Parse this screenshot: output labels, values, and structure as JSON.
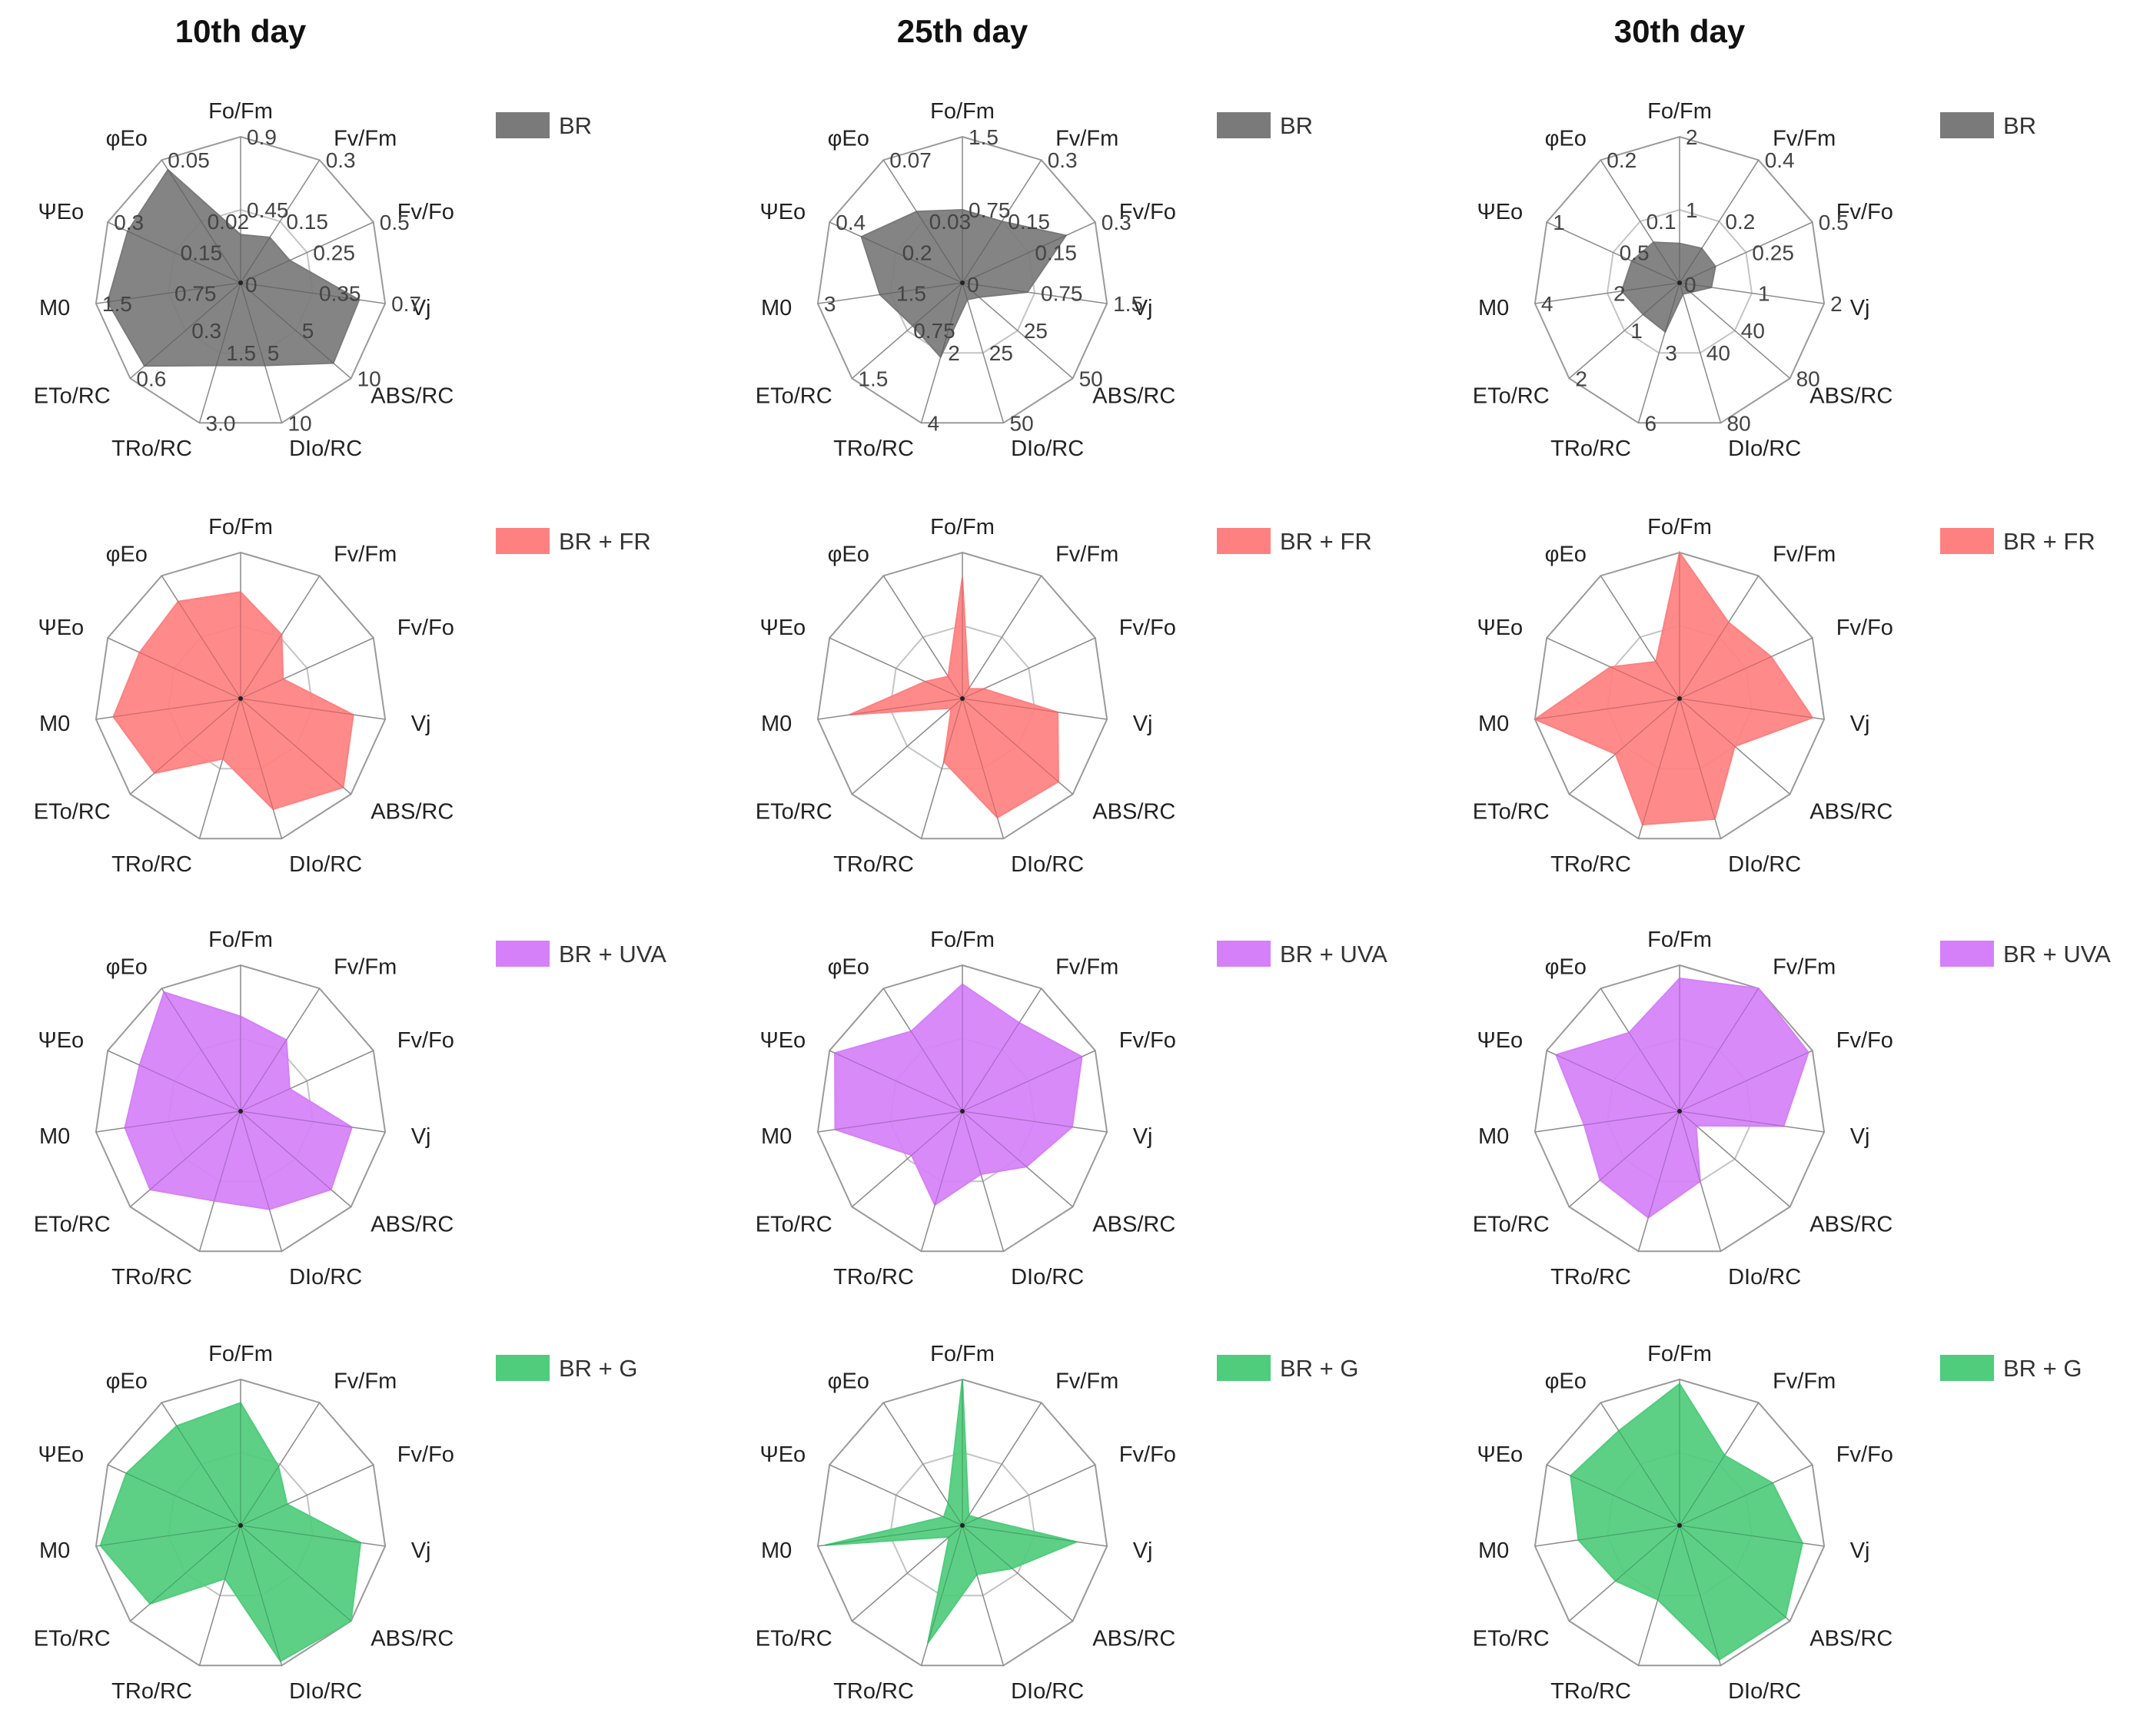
{
  "figure": {
    "axes": [
      "Fo/Fm",
      "Fv/Fm",
      "Fv/Fo",
      "Vj",
      "ABS/RC",
      "DIo/RC",
      "TRo/RC",
      "ETo/RC",
      "M0",
      "ΨEo",
      "φEo"
    ],
    "axis_display": [
      "Fo/Fm",
      "Fv/Fm",
      "Fv/Fo",
      "Vj",
      "ABS/RC",
      "DIo/RC",
      "TRo/RC",
      "ETo/RC",
      "M0",
      "ΨEo",
      "φEo"
    ],
    "columns": [
      {
        "title": "10th day"
      },
      {
        "title": "25th day"
      },
      {
        "title": "30th day"
      }
    ],
    "rows": [
      {
        "legend": "BR",
        "color": "#7a7a7a"
      },
      {
        "legend": "BR + FR",
        "color": "#ff8080"
      },
      {
        "legend": "BR + UVA",
        "color": "#d580f8"
      },
      {
        "legend": "BR + G",
        "color": "#4fcc7c"
      }
    ]
  },
  "scales": [
    {
      "Fo/Fm": [
        "0.45",
        "0.9"
      ],
      "Fv/Fm": [
        "0.15",
        "0.3"
      ],
      "Fv/Fo": [
        "0.25",
        "0.5"
      ],
      "Vj": [
        "0.35",
        "0.7"
      ],
      "ABS/RC": [
        "5",
        "10"
      ],
      "DIo/RC": [
        "5",
        "10"
      ],
      "TRo/RC": [
        "1.5",
        "3.0"
      ],
      "ETo/RC": [
        "0.3",
        "0.6"
      ],
      "M0": [
        "0.75",
        "1.5"
      ],
      "ΨEo": [
        "0.15",
        "0.3"
      ],
      "φEo": [
        "0.02",
        "0.05"
      ]
    },
    {
      "Fo/Fm": [
        "0.75",
        "1.5"
      ],
      "Fv/Fm": [
        "0.15",
        "0.3"
      ],
      "Fv/Fo": [
        "0.15",
        "0.3"
      ],
      "Vj": [
        "0.75",
        "1.5"
      ],
      "ABS/RC": [
        "25",
        "50"
      ],
      "DIo/RC": [
        "25",
        "50"
      ],
      "TRo/RC": [
        "2",
        "4"
      ],
      "ETo/RC": [
        "0.75",
        "1.5"
      ],
      "M0": [
        "1.5",
        "3"
      ],
      "ΨEo": [
        "0.2",
        "0.4"
      ],
      "φEo": [
        "0.03",
        "0.07"
      ]
    },
    {
      "Fo/Fm": [
        "1",
        "2"
      ],
      "Fv/Fm": [
        "0.2",
        "0.4"
      ],
      "Fv/Fo": [
        "0.25",
        "0.5"
      ],
      "Vj": [
        "1",
        "2"
      ],
      "ABS/RC": [
        "40",
        "80"
      ],
      "DIo/RC": [
        "40",
        "80"
      ],
      "TRo/RC": [
        "3",
        "6"
      ],
      "ETo/RC": [
        "1",
        "2"
      ],
      "M0": [
        "2",
        "4"
      ],
      "ΨEo": [
        "0.5",
        "1"
      ],
      "φEo": [
        "0.1",
        "0.2"
      ]
    }
  ],
  "chart_data": [
    {
      "type": "radar",
      "day": "10th day",
      "treatment": "BR",
      "categories": [
        "Fo/Fm",
        "Fv/Fm",
        "Fv/Fo",
        "Vj",
        "ABS/RC",
        "DIo/RC",
        "TRo/RC",
        "ETo/RC",
        "M0",
        "ΨEo",
        "φEo"
      ],
      "values": [
        0.33,
        0.37,
        0.37,
        0.82,
        0.84,
        0.59,
        0.59,
        0.87,
        0.92,
        0.85,
        0.92
      ]
    },
    {
      "type": "radar",
      "day": "25th day",
      "treatment": "BR",
      "categories": [
        "Fo/Fm",
        "Fv/Fm",
        "Fv/Fo",
        "Vj",
        "ABS/RC",
        "DIo/RC",
        "TRo/RC",
        "ETo/RC",
        "M0",
        "ΨEo",
        "φEo"
      ],
      "values": [
        0.5,
        0.5,
        0.78,
        0.45,
        0.15,
        0.12,
        0.53,
        0.45,
        0.57,
        0.76,
        0.58
      ]
    },
    {
      "type": "radar",
      "day": "30th day",
      "treatment": "BR",
      "categories": [
        "Fo/Fm",
        "Fv/Fm",
        "Fv/Fo",
        "Vj",
        "ABS/RC",
        "DIo/RC",
        "TRo/RC",
        "ETo/RC",
        "M0",
        "ΨEo",
        "φEo"
      ],
      "values": [
        0.27,
        0.28,
        0.27,
        0.22,
        0.1,
        0.08,
        0.35,
        0.33,
        0.4,
        0.36,
        0.33
      ]
    },
    {
      "type": "radar",
      "day": "10th day",
      "treatment": "BR + FR",
      "categories": [
        "Fo/Fm",
        "Fv/Fm",
        "Fv/Fo",
        "Vj",
        "ABS/RC",
        "DIo/RC",
        "TRo/RC",
        "ETo/RC",
        "M0",
        "ΨEo",
        "φEo"
      ],
      "values": [
        0.73,
        0.52,
        0.32,
        0.78,
        0.93,
        0.79,
        0.43,
        0.78,
        0.88,
        0.76,
        0.79
      ]
    },
    {
      "type": "radar",
      "day": "25th day",
      "treatment": "BR + FR",
      "categories": [
        "Fo/Fm",
        "Fv/Fm",
        "Fv/Fo",
        "Vj",
        "ABS/RC",
        "DIo/RC",
        "TRo/RC",
        "ETo/RC",
        "M0",
        "ΨEo",
        "φEo"
      ],
      "values": [
        0.83,
        0.08,
        0.16,
        0.66,
        0.87,
        0.85,
        0.45,
        0.1,
        0.78,
        0.28,
        0.18
      ]
    },
    {
      "type": "radar",
      "day": "30th day",
      "treatment": "BR + FR",
      "categories": [
        "Fo/Fm",
        "Fv/Fm",
        "Fv/Fo",
        "Vj",
        "ABS/RC",
        "DIo/RC",
        "TRo/RC",
        "ETo/RC",
        "M0",
        "ΨEo",
        "φEo"
      ],
      "values": [
        1.0,
        0.62,
        0.69,
        0.92,
        0.5,
        0.86,
        0.9,
        0.58,
        1.0,
        0.52,
        0.3
      ]
    },
    {
      "type": "radar",
      "day": "10th day",
      "treatment": "BR + UVA",
      "categories": [
        "Fo/Fm",
        "Fv/Fm",
        "Fv/Fo",
        "Vj",
        "ABS/RC",
        "DIo/RC",
        "TRo/RC",
        "ETo/RC",
        "M0",
        "ΨEo",
        "φEo"
      ],
      "values": [
        0.65,
        0.58,
        0.37,
        0.77,
        0.82,
        0.7,
        0.64,
        0.82,
        0.8,
        0.76,
        0.97
      ]
    },
    {
      "type": "radar",
      "day": "25th day",
      "treatment": "BR + UVA",
      "categories": [
        "Fo/Fm",
        "Fv/Fm",
        "Fv/Fo",
        "Vj",
        "ABS/RC",
        "DIo/RC",
        "TRo/RC",
        "ETo/RC",
        "M0",
        "ΨEo",
        "φEo"
      ],
      "values": [
        0.87,
        0.72,
        0.9,
        0.76,
        0.58,
        0.45,
        0.67,
        0.46,
        0.88,
        0.96,
        0.65
      ]
    },
    {
      "type": "radar",
      "day": "30th day",
      "treatment": "BR + UVA",
      "categories": [
        "Fo/Fm",
        "Fv/Fm",
        "Fv/Fo",
        "Vj",
        "ABS/RC",
        "DIo/RC",
        "TRo/RC",
        "ETo/RC",
        "M0",
        "ΨEo",
        "φEo"
      ],
      "values": [
        0.91,
        1.0,
        0.97,
        0.72,
        0.15,
        0.5,
        0.76,
        0.72,
        0.66,
        0.93,
        0.64
      ]
    },
    {
      "type": "radar",
      "day": "10th day",
      "treatment": "BR + G",
      "categories": [
        "Fo/Fm",
        "Fv/Fm",
        "Fv/Fo",
        "Vj",
        "ABS/RC",
        "DIo/RC",
        "TRo/RC",
        "ETo/RC",
        "M0",
        "ΨEo",
        "φEo"
      ],
      "values": [
        0.84,
        0.48,
        0.35,
        0.83,
        1.0,
        0.97,
        0.38,
        0.82,
        0.97,
        0.86,
        0.81
      ]
    },
    {
      "type": "radar",
      "day": "25th day",
      "treatment": "BR + G",
      "categories": [
        "Fo/Fm",
        "Fv/Fm",
        "Fv/Fo",
        "Vj",
        "ABS/RC",
        "DIo/RC",
        "TRo/RC",
        "ETo/RC",
        "M0",
        "ΨEo",
        "φEo"
      ],
      "values": [
        1.0,
        0.08,
        0.12,
        0.79,
        0.45,
        0.35,
        0.84,
        0.12,
        0.95,
        0.14,
        0.18
      ]
    },
    {
      "type": "radar",
      "day": "30th day",
      "treatment": "BR + G",
      "categories": [
        "Fo/Fm",
        "Fv/Fm",
        "Fv/Fo",
        "Vj",
        "ABS/RC",
        "DIo/RC",
        "TRo/RC",
        "ETo/RC",
        "M0",
        "ΨEo",
        "φEo"
      ],
      "values": [
        0.97,
        0.57,
        0.7,
        0.85,
        0.96,
        0.96,
        0.53,
        0.58,
        0.7,
        0.82,
        0.77
      ]
    }
  ]
}
